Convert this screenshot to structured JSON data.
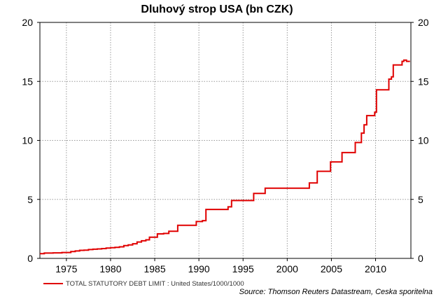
{
  "chart_data": {
    "type": "line",
    "title": "Dluhový strop USA (bn CZK)",
    "xlim": [
      1972,
      2014
    ],
    "ylim": [
      0,
      20
    ],
    "x_ticks": [
      "1975",
      "1980",
      "1985",
      "1990",
      "1995",
      "2000",
      "2005",
      "2010"
    ],
    "y_ticks": [
      "0",
      "5",
      "10",
      "15",
      "20"
    ],
    "grid": true,
    "line_color": "#e00000",
    "legend": {
      "placement": "bottom-left",
      "label": "TOTAL STATUTORY DEBT LIMIT : United States/1000/1000"
    },
    "source": "Source: Thomson Reuters Datastream, Ceska sporitelna",
    "series": [
      {
        "name": "TOTAL STATUTORY DEBT LIMIT : United States/1000/1000",
        "step": true,
        "points": [
          [
            1972.0,
            0.4
          ],
          [
            1972.5,
            0.45
          ],
          [
            1973.5,
            0.47
          ],
          [
            1974.5,
            0.5
          ],
          [
            1975.5,
            0.58
          ],
          [
            1976.0,
            0.63
          ],
          [
            1976.5,
            0.68
          ],
          [
            1977.0,
            0.7
          ],
          [
            1977.5,
            0.75
          ],
          [
            1978.0,
            0.78
          ],
          [
            1978.5,
            0.8
          ],
          [
            1979.0,
            0.83
          ],
          [
            1979.5,
            0.87
          ],
          [
            1980.0,
            0.9
          ],
          [
            1980.5,
            0.93
          ],
          [
            1981.0,
            0.98
          ],
          [
            1981.5,
            1.08
          ],
          [
            1982.0,
            1.14
          ],
          [
            1982.5,
            1.24
          ],
          [
            1983.0,
            1.39
          ],
          [
            1983.5,
            1.49
          ],
          [
            1984.0,
            1.57
          ],
          [
            1984.4,
            1.8
          ],
          [
            1985.3,
            2.08
          ],
          [
            1986.0,
            2.11
          ],
          [
            1986.6,
            2.3
          ],
          [
            1987.6,
            2.8
          ],
          [
            1989.7,
            3.12
          ],
          [
            1990.4,
            3.2
          ],
          [
            1990.8,
            4.15
          ],
          [
            1993.3,
            4.37
          ],
          [
            1993.7,
            4.9
          ],
          [
            1996.2,
            5.5
          ],
          [
            1997.5,
            5.95
          ],
          [
            2002.5,
            6.4
          ],
          [
            2003.4,
            7.38
          ],
          [
            2004.9,
            8.18
          ],
          [
            2006.2,
            8.97
          ],
          [
            2007.7,
            9.82
          ],
          [
            2008.4,
            10.62
          ],
          [
            2008.7,
            11.32
          ],
          [
            2009.0,
            12.1
          ],
          [
            2009.9,
            12.39
          ],
          [
            2010.1,
            14.29
          ],
          [
            2011.5,
            15.19
          ],
          [
            2011.8,
            15.39
          ],
          [
            2012.0,
            16.39
          ],
          [
            2013.0,
            16.7
          ],
          [
            2013.2,
            16.8
          ],
          [
            2013.5,
            16.7
          ],
          [
            2013.9,
            16.7
          ]
        ]
      }
    ]
  }
}
